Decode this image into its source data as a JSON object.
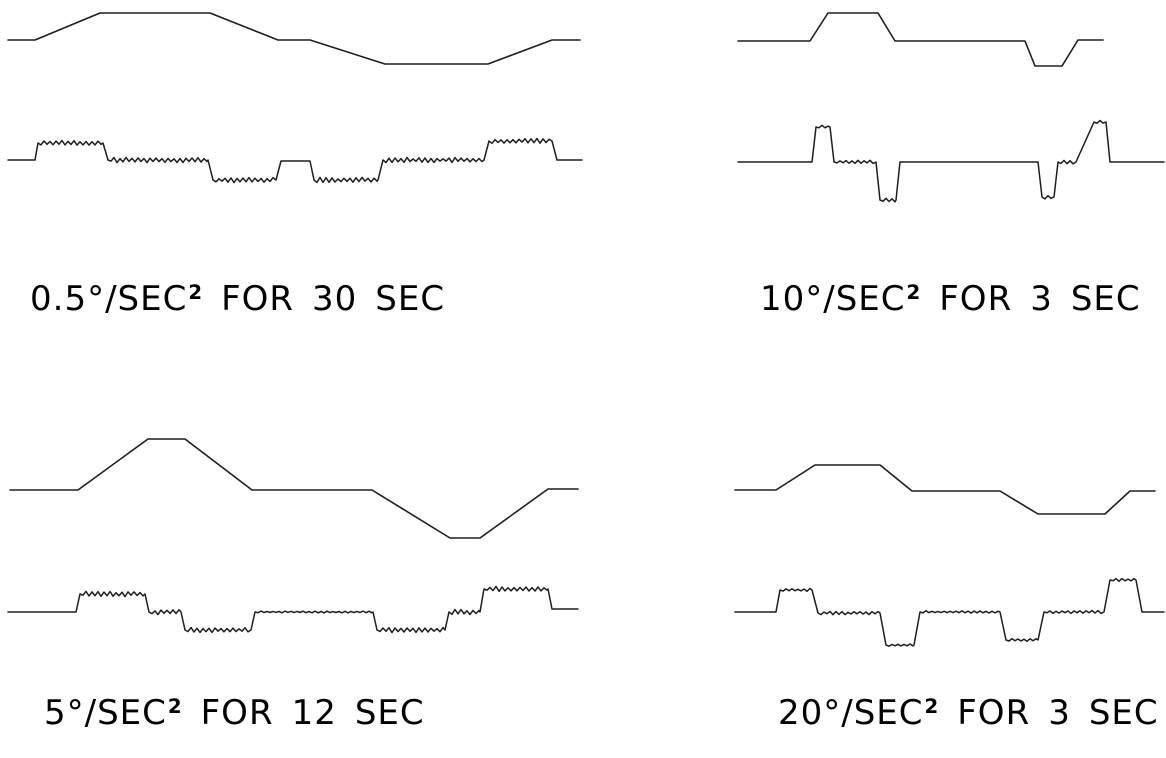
{
  "colors": {
    "background": "#ffffff",
    "ink": "#1e1e1e"
  },
  "panels": [
    {
      "rate": "0.5°/SEC",
      "exponent": "2",
      "word": "FOR",
      "duration": "30",
      "unit": "SEC"
    },
    {
      "rate": "10°/SEC",
      "exponent": "2",
      "word": "FOR",
      "duration": "3",
      "unit": "SEC"
    },
    {
      "rate": "5°/SEC",
      "exponent": "2",
      "word": "FOR",
      "duration": "12",
      "unit": "SEC"
    },
    {
      "rate": "20°/SEC",
      "exponent": "2",
      "word": "FOR",
      "duration": "3",
      "unit": "SEC"
    }
  ]
}
